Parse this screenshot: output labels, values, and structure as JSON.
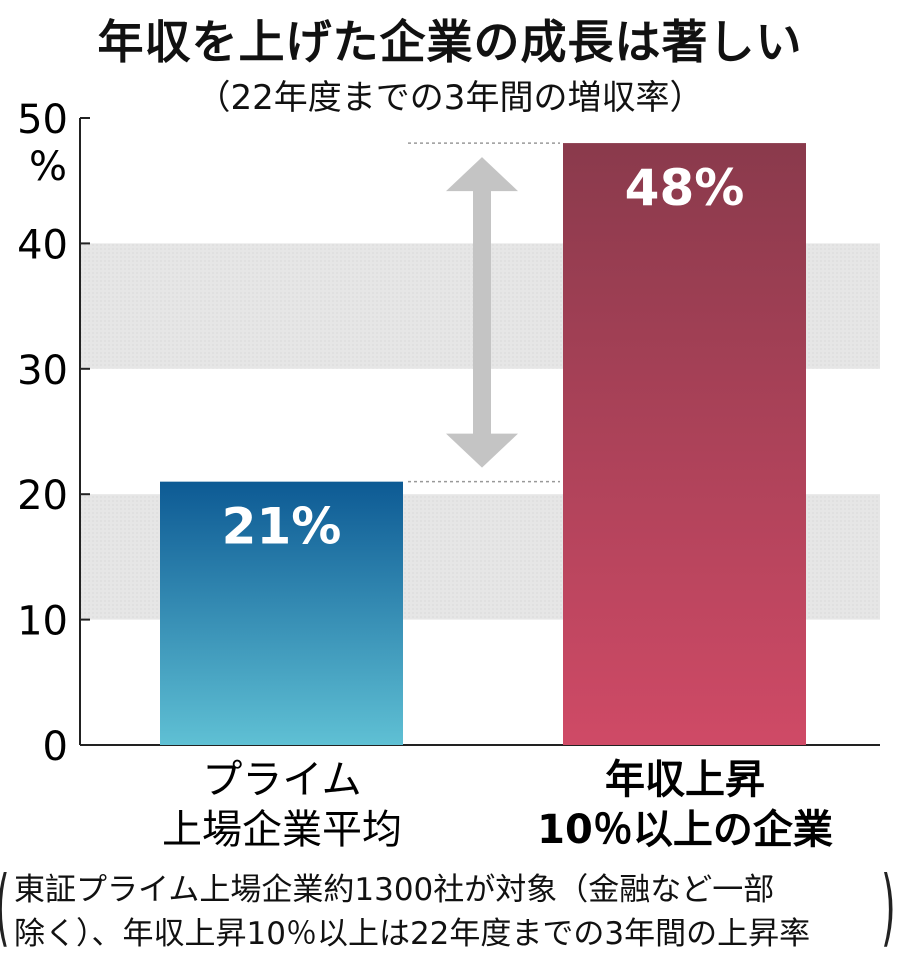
{
  "header": {
    "title": "年収を上げた企業の成長は著しい",
    "subtitle": "（22年度までの3年間の増収率）"
  },
  "chart_data": {
    "type": "bar",
    "title": "年収を上げた企業の成長は著しい",
    "subtitle": "（22年度までの3年間の増収率）",
    "categories": [
      [
        "プライム",
        "上場企業平均"
      ],
      [
        "年収上昇",
        "10％以上の企業"
      ]
    ],
    "values": [
      21,
      48
    ],
    "value_labels": [
      "21%",
      "48%"
    ],
    "ylabel_unit": "%",
    "ylim": [
      0,
      50
    ],
    "yticks": [
      "0",
      "10",
      "20",
      "30",
      "40",
      "50"
    ],
    "bar_colors": [
      [
        "#0d5a94",
        "#5fc0d4"
      ],
      [
        "#8a3a4c",
        "#cf4a66"
      ]
    ],
    "band_color": "#e4e4e4",
    "grid": "alternating-bands"
  },
  "footnote": {
    "line1": "東証プライム上場企業約1300社が対象（金融など一部",
    "line2": "除く）、年収上昇10％以上は22年度までの3年間の上昇率"
  }
}
